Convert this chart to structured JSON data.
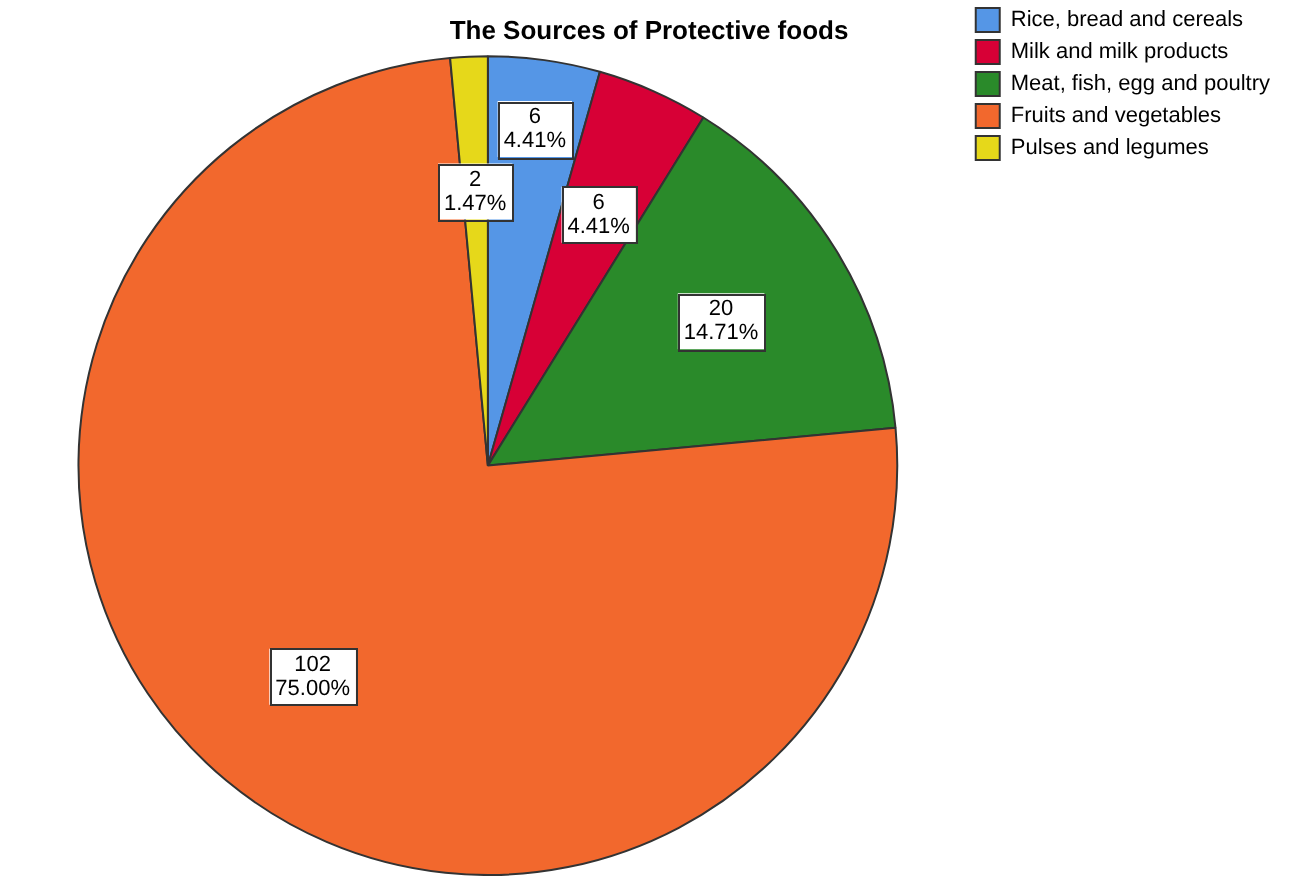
{
  "chart_data": {
    "type": "pie",
    "title": "The Sources of Protective foods",
    "categories": [
      "Rice, bread and cereals",
      "Milk and milk products",
      "Meat, fish, egg and poultry",
      "Fruits and vegetables",
      "Pulses and legumes"
    ],
    "values": [
      6,
      6,
      20,
      102,
      2
    ],
    "colors": [
      "#5596e6",
      "#d70036",
      "#2a8a2a",
      "#f2682d",
      "#e6d81a"
    ],
    "value_labels": [
      "6\n4.41%",
      "6\n4.41%",
      "20\n14.71%",
      "102\n75.00%",
      "2\n1.47%"
    ],
    "legend": "top right"
  }
}
